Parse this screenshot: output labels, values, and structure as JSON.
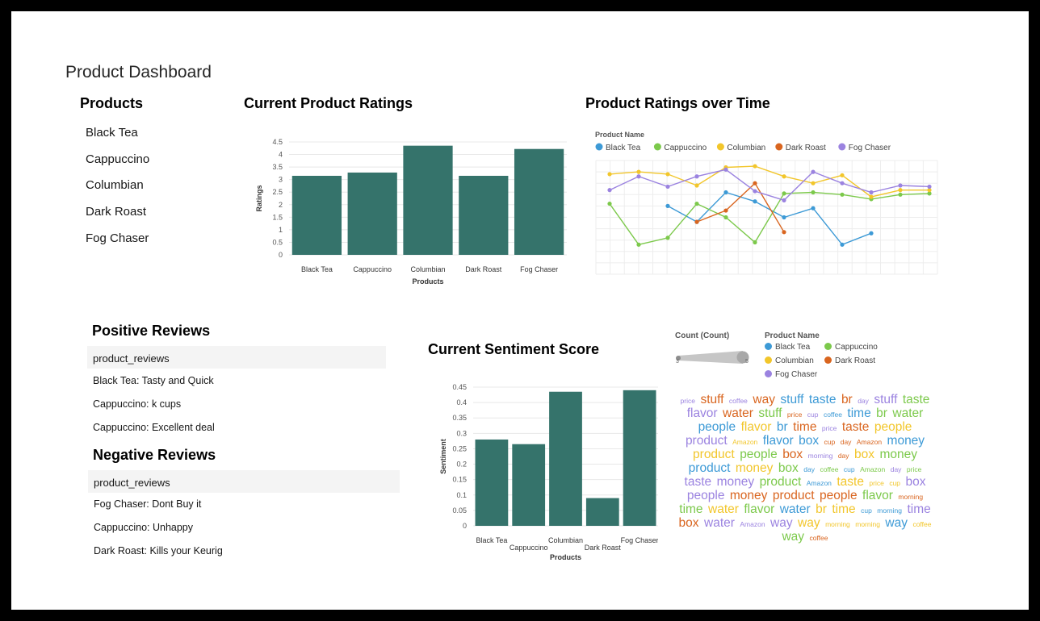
{
  "dashboard": {
    "title": "Product Dashboard"
  },
  "products": {
    "title": "Products",
    "items": [
      "Black Tea",
      "Cappuccino",
      "Columbian",
      "Dark Roast",
      "Fog Chaser"
    ]
  },
  "positive_reviews": {
    "title": "Positive Reviews",
    "column": "product_reviews",
    "rows": [
      "Black Tea: Tasty and Quick",
      "Cappuccino: k cups",
      "Cappuccino: Excellent deal"
    ]
  },
  "negative_reviews": {
    "title": "Negative Reviews",
    "column": "product_reviews",
    "rows": [
      "Fog Chaser: Dont Buy it",
      "Cappuccino: Unhappy",
      "Dark Roast: Kills your Keurig"
    ]
  },
  "colors": {
    "bar": "#35736b",
    "Black Tea": "#3d9ad6",
    "Cappuccino": "#7cc94b",
    "Columbian": "#f2c62b",
    "Dark Roast": "#d9651f",
    "Fog Chaser": "#9b83e0"
  },
  "wordcloud": {
    "size_legend_title": "Count (Count)",
    "size_min": "3",
    "size_max": "5",
    "color_legend_title": "Product Name",
    "legend_items": [
      "Black Tea",
      "Cappuccino",
      "Columbian",
      "Dark Roast",
      "Fog Chaser"
    ],
    "words": [
      {
        "t": "price",
        "c": "Fog Chaser",
        "s": "s"
      },
      {
        "t": "stuff",
        "c": "Dark Roast",
        "s": "l"
      },
      {
        "t": "coffee",
        "c": "Fog Chaser",
        "s": "s"
      },
      {
        "t": "way",
        "c": "Dark Roast",
        "s": "l"
      },
      {
        "t": "stuff",
        "c": "Black Tea",
        "s": "l"
      },
      {
        "t": "taste",
        "c": "Black Tea",
        "s": "l"
      },
      {
        "t": "br",
        "c": "Dark Roast",
        "s": "l"
      },
      {
        "t": "day",
        "c": "Fog Chaser",
        "s": "s"
      },
      {
        "t": "stuff",
        "c": "Fog Chaser",
        "s": "l"
      },
      {
        "t": "taste",
        "c": "Cappuccino",
        "s": "l"
      },
      {
        "t": "flavor",
        "c": "Fog Chaser",
        "s": "l"
      },
      {
        "t": "water",
        "c": "Dark Roast",
        "s": "l"
      },
      {
        "t": "stuff",
        "c": "Cappuccino",
        "s": "l"
      },
      {
        "t": "price",
        "c": "Dark Roast",
        "s": "s"
      },
      {
        "t": "cup",
        "c": "Fog Chaser",
        "s": "s"
      },
      {
        "t": "coffee",
        "c": "Black Tea",
        "s": "s"
      },
      {
        "t": "time",
        "c": "Black Tea",
        "s": "l"
      },
      {
        "t": "br",
        "c": "Cappuccino",
        "s": "l"
      },
      {
        "t": "water",
        "c": "Cappuccino",
        "s": "l"
      },
      {
        "t": "people",
        "c": "Black Tea",
        "s": "l"
      },
      {
        "t": "flavor",
        "c": "Columbian",
        "s": "l"
      },
      {
        "t": "br",
        "c": "Black Tea",
        "s": "l"
      },
      {
        "t": "time",
        "c": "Dark Roast",
        "s": "l"
      },
      {
        "t": "price",
        "c": "Fog Chaser",
        "s": "s"
      },
      {
        "t": "taste",
        "c": "Dark Roast",
        "s": "l"
      },
      {
        "t": "people",
        "c": "Columbian",
        "s": "l"
      },
      {
        "t": "product",
        "c": "Fog Chaser",
        "s": "l"
      },
      {
        "t": "Amazon",
        "c": "Columbian",
        "s": "s"
      },
      {
        "t": "flavor",
        "c": "Black Tea",
        "s": "l"
      },
      {
        "t": "box",
        "c": "Black Tea",
        "s": "l"
      },
      {
        "t": "cup",
        "c": "Dark Roast",
        "s": "s"
      },
      {
        "t": "day",
        "c": "Dark Roast",
        "s": "s"
      },
      {
        "t": "Amazon",
        "c": "Dark Roast",
        "s": "s"
      },
      {
        "t": "money",
        "c": "Black Tea",
        "s": "l"
      },
      {
        "t": "product",
        "c": "Columbian",
        "s": "l"
      },
      {
        "t": "people",
        "c": "Cappuccino",
        "s": "l"
      },
      {
        "t": "box",
        "c": "Dark Roast",
        "s": "l"
      },
      {
        "t": "morning",
        "c": "Fog Chaser",
        "s": "s"
      },
      {
        "t": "day",
        "c": "Dark Roast",
        "s": "s"
      },
      {
        "t": "box",
        "c": "Columbian",
        "s": "l"
      },
      {
        "t": "money",
        "c": "Cappuccino",
        "s": "l"
      },
      {
        "t": "product",
        "c": "Black Tea",
        "s": "l"
      },
      {
        "t": "money",
        "c": "Columbian",
        "s": "l"
      },
      {
        "t": "box",
        "c": "Cappuccino",
        "s": "l"
      },
      {
        "t": "day",
        "c": "Black Tea",
        "s": "s"
      },
      {
        "t": "coffee",
        "c": "Cappuccino",
        "s": "s"
      },
      {
        "t": "cup",
        "c": "Black Tea",
        "s": "s"
      },
      {
        "t": "Amazon",
        "c": "Cappuccino",
        "s": "s"
      },
      {
        "t": "day",
        "c": "Fog Chaser",
        "s": "s"
      },
      {
        "t": "price",
        "c": "Cappuccino",
        "s": "s"
      },
      {
        "t": "taste",
        "c": "Fog Chaser",
        "s": "l"
      },
      {
        "t": "money",
        "c": "Fog Chaser",
        "s": "l"
      },
      {
        "t": "product",
        "c": "Cappuccino",
        "s": "l"
      },
      {
        "t": "Amazon",
        "c": "Black Tea",
        "s": "s"
      },
      {
        "t": "taste",
        "c": "Columbian",
        "s": "l"
      },
      {
        "t": "price",
        "c": "Columbian",
        "s": "s"
      },
      {
        "t": "cup",
        "c": "Columbian",
        "s": "s"
      },
      {
        "t": "box",
        "c": "Fog Chaser",
        "s": "l"
      },
      {
        "t": "people",
        "c": "Fog Chaser",
        "s": "l"
      },
      {
        "t": "money",
        "c": "Dark Roast",
        "s": "l"
      },
      {
        "t": "product",
        "c": "Dark Roast",
        "s": "l"
      },
      {
        "t": "people",
        "c": "Dark Roast",
        "s": "l"
      },
      {
        "t": "flavor",
        "c": "Cappuccino",
        "s": "l"
      },
      {
        "t": "morning",
        "c": "Dark Roast",
        "s": "s"
      },
      {
        "t": "time",
        "c": "Cappuccino",
        "s": "l"
      },
      {
        "t": "water",
        "c": "Columbian",
        "s": "l"
      },
      {
        "t": "flavor",
        "c": "Cappuccino",
        "s": "l"
      },
      {
        "t": "water",
        "c": "Black Tea",
        "s": "l"
      },
      {
        "t": "br",
        "c": "Columbian",
        "s": "l"
      },
      {
        "t": "time",
        "c": "Columbian",
        "s": "l"
      },
      {
        "t": "cup",
        "c": "Black Tea",
        "s": "s"
      },
      {
        "t": "morning",
        "c": "Black Tea",
        "s": "s"
      },
      {
        "t": "time",
        "c": "Fog Chaser",
        "s": "l"
      },
      {
        "t": "box",
        "c": "Dark Roast",
        "s": "l"
      },
      {
        "t": "water",
        "c": "Fog Chaser",
        "s": "l"
      },
      {
        "t": "Amazon",
        "c": "Fog Chaser",
        "s": "s"
      },
      {
        "t": "way",
        "c": "Fog Chaser",
        "s": "l"
      },
      {
        "t": "way",
        "c": "Columbian",
        "s": "l"
      },
      {
        "t": "morning",
        "c": "Columbian",
        "s": "s"
      },
      {
        "t": "morning",
        "c": "Columbian",
        "s": "s"
      },
      {
        "t": "way",
        "c": "Black Tea",
        "s": "l"
      },
      {
        "t": "coffee",
        "c": "Columbian",
        "s": "s"
      },
      {
        "t": "way",
        "c": "Cappuccino",
        "s": "l"
      },
      {
        "t": "coffee",
        "c": "Dark Roast",
        "s": "s"
      }
    ]
  },
  "chart_data": [
    {
      "id": "ratings",
      "type": "bar",
      "title": "Current Product Ratings",
      "xlabel": "Products",
      "ylabel": "Ratings",
      "categories": [
        "Black Tea",
        "Cappuccino",
        "Columbian",
        "Dark Roast",
        "Fog Chaser"
      ],
      "values": [
        3.15,
        3.28,
        4.35,
        3.15,
        4.22
      ],
      "ylim": [
        0,
        4.5
      ],
      "yticks": [
        "0",
        "0.5",
        "1",
        "1.5",
        "2",
        "2.5",
        "3",
        "3.5",
        "4",
        "4.5"
      ],
      "grid": true
    },
    {
      "id": "timeline",
      "type": "line",
      "title": "Product Ratings over Time",
      "legend_title": "Product Name",
      "legend_position": "top-left",
      "x": [
        1,
        2,
        3,
        4,
        5,
        6,
        7,
        8,
        9,
        10,
        11,
        12
      ],
      "ylim": [
        0,
        5
      ],
      "grid": true,
      "series": [
        {
          "name": "Black Tea",
          "values": [
            null,
            null,
            3.0,
            2.3,
            3.6,
            3.2,
            2.5,
            2.9,
            1.3,
            1.8,
            null,
            null
          ]
        },
        {
          "name": "Cappuccino",
          "values": [
            3.1,
            1.3,
            1.6,
            3.1,
            2.5,
            1.4,
            3.55,
            3.6,
            3.5,
            3.3,
            3.5,
            3.55
          ]
        },
        {
          "name": "Columbian",
          "values": [
            4.4,
            4.5,
            4.4,
            3.9,
            4.7,
            4.75,
            4.3,
            4.0,
            4.35,
            3.4,
            3.7,
            3.7
          ]
        },
        {
          "name": "Dark Roast",
          "values": [
            null,
            null,
            null,
            2.3,
            2.8,
            4.0,
            1.85,
            null,
            null,
            null,
            null,
            null
          ]
        },
        {
          "name": "Fog Chaser",
          "values": [
            3.7,
            4.3,
            3.85,
            4.3,
            4.6,
            3.65,
            3.25,
            4.5,
            4.0,
            3.6,
            3.9,
            3.85
          ]
        }
      ]
    },
    {
      "id": "sentiment",
      "type": "bar",
      "title": "Current Sentiment Score",
      "xlabel": "Products",
      "ylabel": "Sentiment",
      "categories": [
        "Black Tea",
        "Cappuccino",
        "Columbian",
        "Dark Roast",
        "Fog Chaser"
      ],
      "values": [
        0.28,
        0.265,
        0.435,
        0.09,
        0.44
      ],
      "ylim": [
        0,
        0.45
      ],
      "yticks": [
        "0",
        "0.05",
        "0.1",
        "0.15",
        "0.2",
        "0.25",
        "0.3",
        "0.35",
        "0.4",
        "0.45"
      ],
      "grid": true
    }
  ]
}
